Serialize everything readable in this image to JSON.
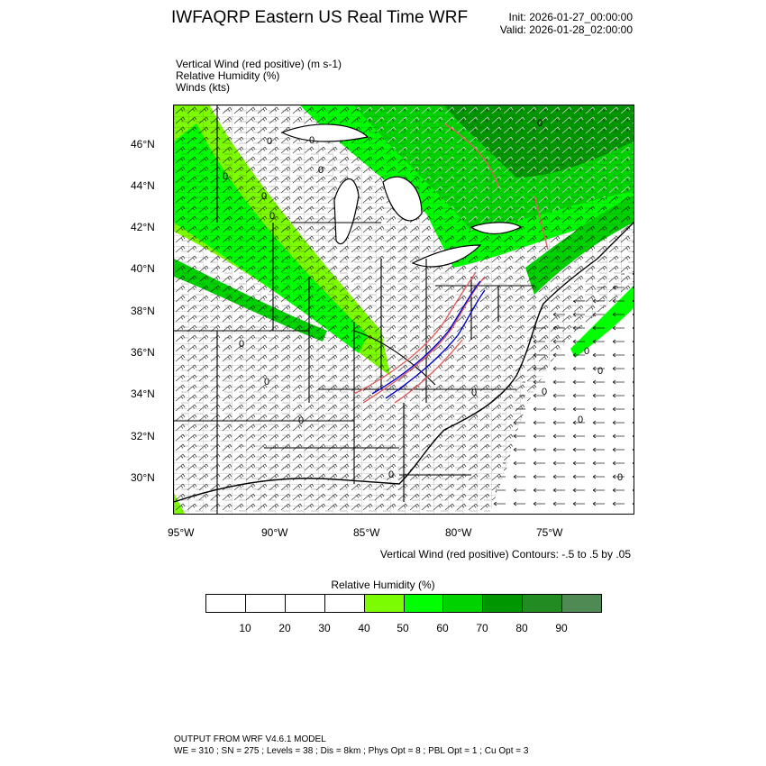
{
  "header": {
    "title": "IWFAQRP Eastern US Real Time WRF",
    "init": "Init: 2026-01-27_00:00:00",
    "valid": "Valid: 2026-01-28_02:00:00"
  },
  "fields": [
    "Vertical Wind (red positive)   (m s-1)",
    "Relative Humidity   (%)",
    "Winds   (kts)"
  ],
  "map": {
    "lat_ticks": [
      "46°N",
      "44°N",
      "42°N",
      "40°N",
      "38°N",
      "36°N",
      "34°N",
      "32°N",
      "30°N"
    ],
    "lon_ticks": [
      "95°W",
      "90°W",
      "85°W",
      "80°W",
      "75°W"
    ],
    "contour_labels": [
      "0",
      "0",
      "0",
      "0",
      "0",
      "0",
      "0",
      "0",
      "0",
      "0",
      "0",
      "0",
      "0",
      "0",
      "0",
      "0",
      "0"
    ],
    "colors": {
      "rh_40": "#7cfc00",
      "rh_50": "#00ff00",
      "rh_60": "#00d200",
      "rh_70": "#009600",
      "rh_80": "#228b22",
      "rh_90": "#4f8a55",
      "ascent": "#e06060",
      "descent": "#0000cc"
    }
  },
  "contour_note": "Vertical Wind (red positive) Contours: -.5 to .5 by .05",
  "legend": {
    "title": "Relative Humidity   (%)",
    "colors": [
      "#ffffff",
      "#ffffff",
      "#ffffff",
      "#ffffff",
      "#7cfc00",
      "#00ff00",
      "#00d200",
      "#009600",
      "#228b22",
      "#4f8a55"
    ],
    "labels": [
      "10",
      "20",
      "30",
      "40",
      "50",
      "60",
      "70",
      "80",
      "90"
    ]
  },
  "footer": {
    "line1": "OUTPUT FROM WRF V4.6.1 MODEL",
    "line2": "WE = 310 ; SN = 275 ; Levels = 38 ; Dis = 8km ; Phys Opt = 8 ; PBL Opt = 1 ; Cu Opt = 3"
  }
}
